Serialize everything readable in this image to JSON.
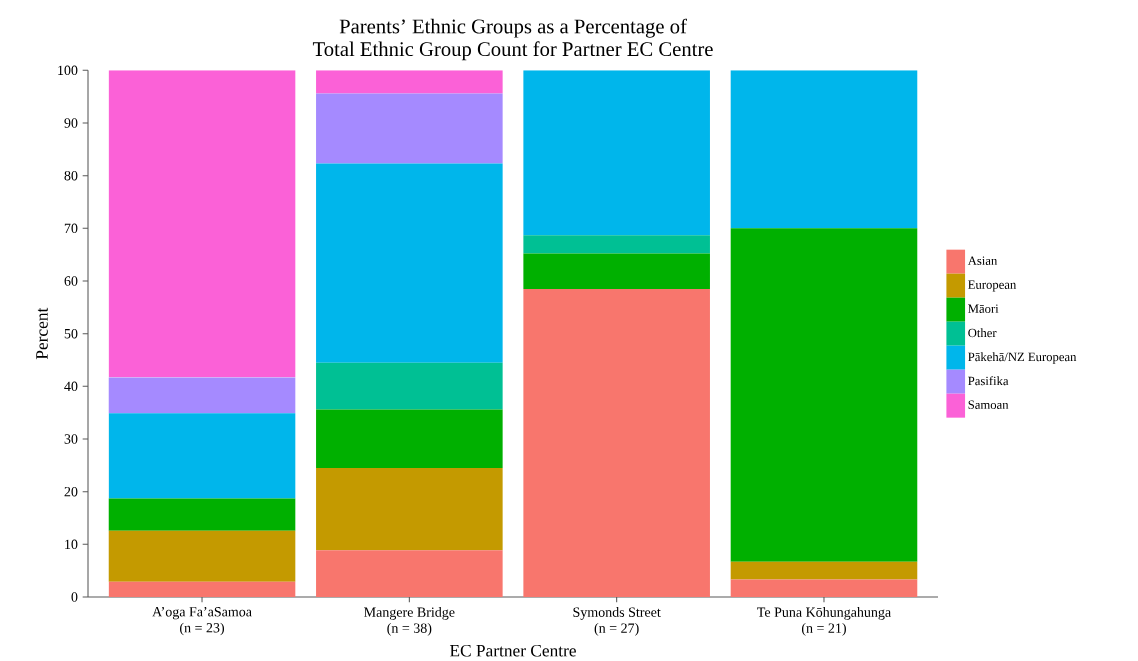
{
  "chart_data": {
    "type": "bar",
    "title": "Parents’ Ethnic Groups as a Percentage of\nTotal Ethnic Group Count for Partner EC Centre",
    "xlabel": "EC Partner Centre",
    "ylabel": "Percent",
    "categories": [
      "A’oga Fa’aSamoa\n(n = 23)",
      "Mangere Bridge\n(n = 38)",
      "Symonds Street\n(n = 27)",
      "Te Puna Kōhungahunga\n(n = 21)"
    ],
    "stacked": true,
    "series": [
      {
        "name": "Asian",
        "color": "#f8766d",
        "values": [
          2.9,
          8.9,
          58.5,
          3.3
        ]
      },
      {
        "name": "European",
        "color": "#c49a00",
        "values": [
          9.7,
          15.6,
          null,
          3.4
        ]
      },
      {
        "name": "Māori",
        "color": "#00b000",
        "values": [
          6.1,
          11.1,
          6.7,
          63.3
        ]
      },
      {
        "name": "Other",
        "color": "#00c094",
        "values": [
          null,
          8.9,
          3.5,
          null
        ]
      },
      {
        "name": "Pākehā/NZ European",
        "color": "#00b6eb",
        "values": [
          16.2,
          37.8,
          31.3,
          30.0
        ]
      },
      {
        "name": "Pasifika",
        "color": "#a58aff",
        "values": [
          6.8,
          13.3,
          null,
          null
        ]
      },
      {
        "name": "Samoan",
        "color": "#fb61d7",
        "values": [
          58.3,
          4.4,
          null,
          null
        ]
      }
    ],
    "ylim": [
      0,
      100
    ],
    "yticks": [
      0,
      10,
      20,
      30,
      40,
      50,
      60,
      70,
      80,
      90,
      100
    ],
    "grid": false,
    "legend": "right"
  }
}
